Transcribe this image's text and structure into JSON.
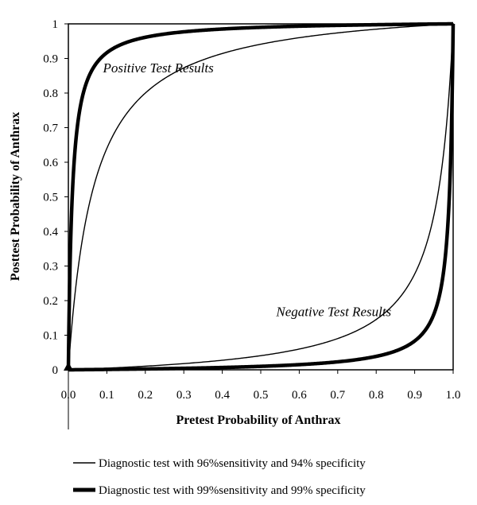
{
  "chart_data": {
    "type": "line",
    "title": "",
    "xlabel": "Pretest Probability of Anthrax",
    "ylabel": "Posttest Probability of Anthrax",
    "xlim": [
      0,
      1
    ],
    "ylim": [
      0,
      1
    ],
    "grid": false,
    "legend_placement": "bottom",
    "x_ticks": [
      "0.0",
      "0.1",
      "0.2",
      "0.3",
      "0.4",
      "0.5",
      "0.6",
      "0.7",
      "0.8",
      "0.9",
      "1.0"
    ],
    "y_ticks": [
      "0",
      "0.1",
      "0.2",
      "0.3",
      "0.4",
      "0.5",
      "0.6",
      "0.7",
      "0.8",
      "0.9",
      "1"
    ],
    "annotations": [
      {
        "text": "Positive Test Results",
        "x": 0.09,
        "y": 0.86
      },
      {
        "text": "Negative Test Results",
        "x": 0.54,
        "y": 0.155
      }
    ],
    "marker": {
      "shape": "triangle",
      "x": 0.0,
      "y": 0.0
    },
    "series": [
      {
        "name": "Diagnostic test with 96%sensitivity and 94% specificity",
        "sensitivity": 0.96,
        "specificity": 0.94,
        "result": "positive",
        "style": "thin",
        "x": [
          0.0,
          0.01,
          0.02,
          0.05,
          0.1,
          0.2,
          0.3,
          0.5,
          0.7,
          0.9,
          1.0
        ],
        "y": [
          0.0,
          0.14,
          0.25,
          0.46,
          0.64,
          0.8,
          0.87,
          0.94,
          0.97,
          0.99,
          1.0
        ]
      },
      {
        "name": "Diagnostic test with 96%sensitivity and 94% specificity",
        "sensitivity": 0.96,
        "specificity": 0.94,
        "result": "negative",
        "style": "thin",
        "x": [
          0.0,
          0.1,
          0.3,
          0.5,
          0.7,
          0.8,
          0.9,
          0.95,
          0.98,
          0.99,
          1.0
        ],
        "y": [
          0.0,
          0.005,
          0.018,
          0.042,
          0.094,
          0.15,
          0.28,
          0.45,
          0.68,
          0.81,
          1.0
        ]
      },
      {
        "name": "Diagnostic test with 99%sensitivity and 99% specificity",
        "sensitivity": 0.99,
        "specificity": 0.99,
        "result": "positive",
        "style": "thick",
        "x": [
          0.0,
          0.01,
          0.02,
          0.05,
          0.1,
          0.2,
          0.5,
          0.8,
          1.0
        ],
        "y": [
          0.0,
          0.5,
          0.67,
          0.84,
          0.92,
          0.96,
          0.99,
          0.997,
          1.0
        ]
      },
      {
        "name": "Diagnostic test with 99%sensitivity and 99% specificity",
        "sensitivity": 0.99,
        "specificity": 0.99,
        "result": "negative",
        "style": "thick",
        "x": [
          0.0,
          0.2,
          0.5,
          0.8,
          0.9,
          0.95,
          0.98,
          0.99,
          1.0
        ],
        "y": [
          0.0,
          0.003,
          0.01,
          0.039,
          0.083,
          0.161,
          0.33,
          0.5,
          1.0
        ]
      }
    ]
  },
  "legend": [
    {
      "label": "Diagnostic test with 96%sensitivity and 94% specificity",
      "style": "thin"
    },
    {
      "label": "Diagnostic test with 99%sensitivity and 99% specificity",
      "style": "thick"
    }
  ]
}
